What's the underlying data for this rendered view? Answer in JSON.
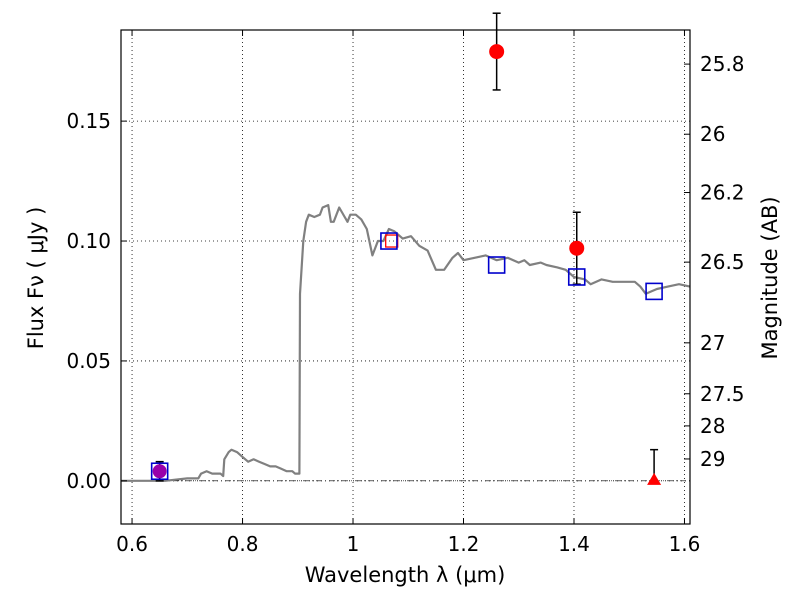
{
  "chart_data": {
    "type": "scatter",
    "xlabel": "Wavelength  λ (μm)",
    "ylabel": "Flux  Fν  ( μJy )",
    "y2label": "Magnitude (AB)",
    "xlim": [
      0.58,
      1.61
    ],
    "ylim": [
      -0.018,
      0.188
    ],
    "grid": true,
    "x_ticks": [
      {
        "value": 0.6,
        "label": "0.6"
      },
      {
        "value": 0.8,
        "label": "0.8"
      },
      {
        "value": 1.0,
        "label": "1"
      },
      {
        "value": 1.2,
        "label": "1.2"
      },
      {
        "value": 1.4,
        "label": "1.4"
      },
      {
        "value": 1.6,
        "label": "1.6"
      }
    ],
    "y_ticks": [
      {
        "value": 0.0,
        "label": "0.00"
      },
      {
        "value": 0.05,
        "label": "0.05"
      },
      {
        "value": 0.1,
        "label": "0.10"
      },
      {
        "value": 0.15,
        "label": "0.15"
      }
    ],
    "y2_ticks": [
      {
        "value": 25.8,
        "label": "25.8"
      },
      {
        "value": 26.0,
        "label": "26"
      },
      {
        "value": 26.2,
        "label": "26.2"
      },
      {
        "value": 26.5,
        "label": "26.5"
      },
      {
        "value": 27.0,
        "label": "27"
      },
      {
        "value": 27.5,
        "label": "27.5"
      },
      {
        "value": 28.0,
        "label": "28"
      },
      {
        "value": 29.0,
        "label": "29"
      }
    ],
    "template_sed": {
      "color": "#808080",
      "points": [
        [
          0.58,
          0.0
        ],
        [
          0.66,
          0.0
        ],
        [
          0.7,
          0.001
        ],
        [
          0.72,
          0.001
        ],
        [
          0.725,
          0.003
        ],
        [
          0.735,
          0.004
        ],
        [
          0.745,
          0.003
        ],
        [
          0.76,
          0.003
        ],
        [
          0.765,
          0.002
        ],
        [
          0.767,
          0.009
        ],
        [
          0.775,
          0.012
        ],
        [
          0.78,
          0.013
        ],
        [
          0.79,
          0.012
        ],
        [
          0.8,
          0.01
        ],
        [
          0.81,
          0.008
        ],
        [
          0.82,
          0.009
        ],
        [
          0.83,
          0.008
        ],
        [
          0.84,
          0.007
        ],
        [
          0.85,
          0.006
        ],
        [
          0.86,
          0.006
        ],
        [
          0.87,
          0.005
        ],
        [
          0.88,
          0.004
        ],
        [
          0.89,
          0.004
        ],
        [
          0.895,
          0.003
        ],
        [
          0.903,
          0.003
        ],
        [
          0.904,
          0.078
        ],
        [
          0.91,
          0.1
        ],
        [
          0.915,
          0.108
        ],
        [
          0.92,
          0.111
        ],
        [
          0.93,
          0.11
        ],
        [
          0.94,
          0.111
        ],
        [
          0.945,
          0.114
        ],
        [
          0.955,
          0.115
        ],
        [
          0.96,
          0.108
        ],
        [
          0.965,
          0.108
        ],
        [
          0.975,
          0.114
        ],
        [
          0.985,
          0.11
        ],
        [
          0.99,
          0.108
        ],
        [
          0.995,
          0.111
        ],
        [
          1.005,
          0.111
        ],
        [
          1.015,
          0.109
        ],
        [
          1.025,
          0.105
        ],
        [
          1.035,
          0.094
        ],
        [
          1.045,
          0.1
        ],
        [
          1.055,
          0.1
        ],
        [
          1.065,
          0.105
        ],
        [
          1.075,
          0.104
        ],
        [
          1.09,
          0.101
        ],
        [
          1.105,
          0.102
        ],
        [
          1.12,
          0.098
        ],
        [
          1.135,
          0.096
        ],
        [
          1.15,
          0.088
        ],
        [
          1.165,
          0.088
        ],
        [
          1.18,
          0.093
        ],
        [
          1.19,
          0.095
        ],
        [
          1.2,
          0.092
        ],
        [
          1.22,
          0.093
        ],
        [
          1.24,
          0.094
        ],
        [
          1.26,
          0.092
        ],
        [
          1.28,
          0.093
        ],
        [
          1.3,
          0.091
        ],
        [
          1.31,
          0.092
        ],
        [
          1.32,
          0.09
        ],
        [
          1.34,
          0.091
        ],
        [
          1.35,
          0.09
        ],
        [
          1.37,
          0.089
        ],
        [
          1.385,
          0.088
        ],
        [
          1.4,
          0.085
        ],
        [
          1.42,
          0.084
        ],
        [
          1.43,
          0.082
        ],
        [
          1.45,
          0.084
        ],
        [
          1.47,
          0.083
        ],
        [
          1.49,
          0.083
        ],
        [
          1.51,
          0.083
        ],
        [
          1.52,
          0.081
        ],
        [
          1.53,
          0.078
        ],
        [
          1.55,
          0.08
        ],
        [
          1.57,
          0.081
        ],
        [
          1.59,
          0.082
        ],
        [
          1.61,
          0.081
        ]
      ]
    },
    "model_photometry": {
      "marker": "square",
      "color": "#0000cc",
      "points": [
        {
          "x": 0.65,
          "y": 0.004
        },
        {
          "x": 1.065,
          "y": 0.1
        },
        {
          "x": 1.26,
          "y": 0.09
        },
        {
          "x": 1.405,
          "y": 0.085
        },
        {
          "x": 1.545,
          "y": 0.079
        }
      ]
    },
    "observed_photometry": {
      "marker": "circle",
      "color": "#ff0000",
      "points": [
        {
          "x": 1.26,
          "y": 0.179,
          "err_lo": 0.016,
          "err_hi": 0.016
        },
        {
          "x": 1.405,
          "y": 0.097,
          "err_lo": 0.015,
          "err_hi": 0.015
        }
      ]
    },
    "small_box_markers": {
      "color": "#ff0000",
      "points": [
        {
          "x": 1.07,
          "y": 0.1
        }
      ]
    },
    "blue_dropout_point": {
      "marker": "circle",
      "color": "#9900aa",
      "points": [
        {
          "x": 0.65,
          "y": 0.004,
          "err_lo": 0.004,
          "err_hi": 0.004
        }
      ]
    },
    "upper_limit": {
      "marker": "triangle",
      "color": "#ff0000",
      "points": [
        {
          "x": 1.545,
          "y": 0.0,
          "err_lo": 0.0,
          "err_hi": 0.013
        }
      ]
    },
    "zero_line": {
      "y": 0.0
    }
  }
}
